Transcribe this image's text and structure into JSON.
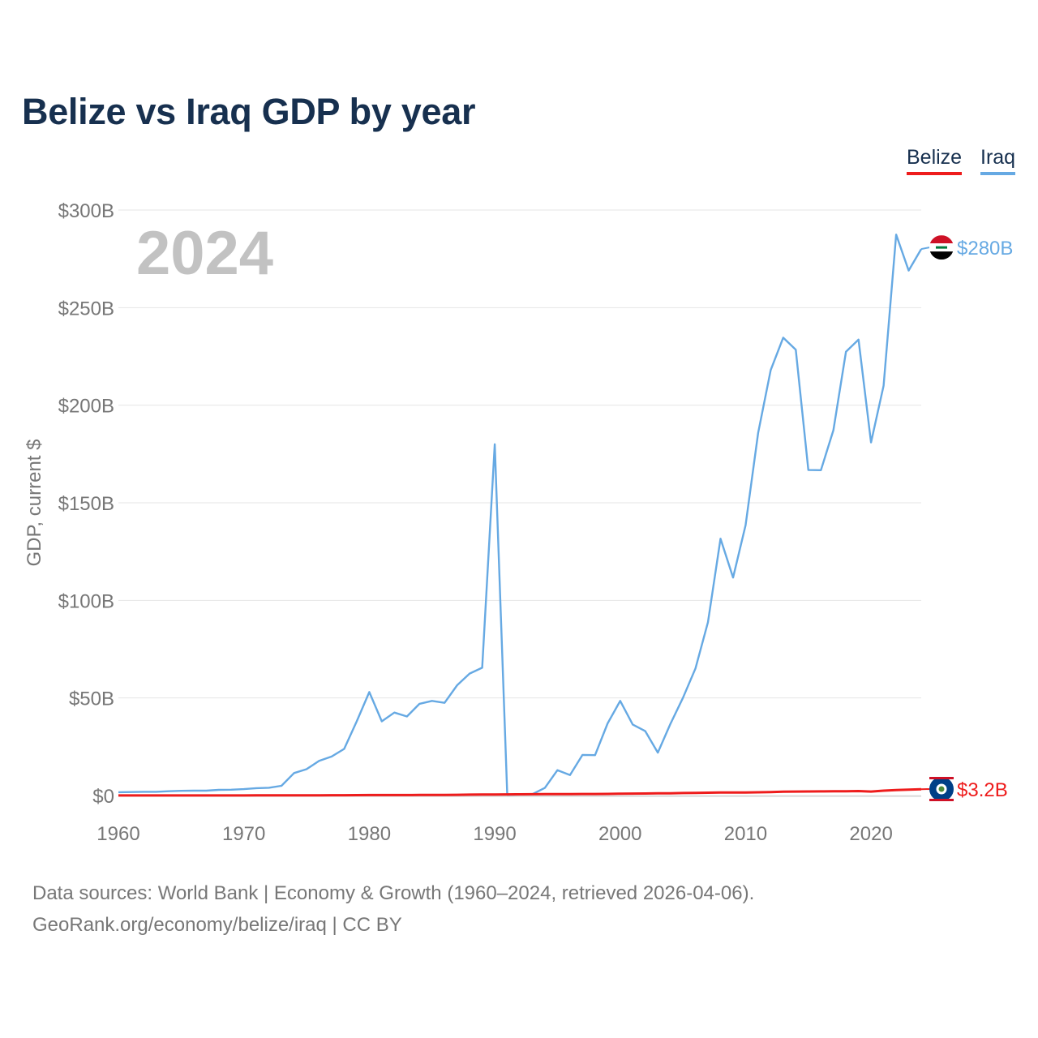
{
  "chart_data": {
    "type": "line",
    "title": "Belize vs Iraq GDP by year",
    "ylabel": "GDP, current $",
    "xlabel": "",
    "year_watermark": "2024",
    "ylim": [
      0,
      300
    ],
    "xlim": [
      1960,
      2024
    ],
    "y_ticks": [
      {
        "value": 0,
        "label": "$0"
      },
      {
        "value": 50,
        "label": "$50B"
      },
      {
        "value": 100,
        "label": "$100B"
      },
      {
        "value": 150,
        "label": "$150B"
      },
      {
        "value": 200,
        "label": "$200B"
      },
      {
        "value": 250,
        "label": "$250B"
      },
      {
        "value": 300,
        "label": "$300B"
      }
    ],
    "x_ticks": [
      {
        "value": 1960,
        "label": "1960"
      },
      {
        "value": 1970,
        "label": "1970"
      },
      {
        "value": 1980,
        "label": "1980"
      },
      {
        "value": 1990,
        "label": "1990"
      },
      {
        "value": 2000,
        "label": "2000"
      },
      {
        "value": 2010,
        "label": "2010"
      },
      {
        "value": 2020,
        "label": "2020"
      }
    ],
    "x": [
      1960,
      1961,
      1962,
      1963,
      1964,
      1965,
      1966,
      1967,
      1968,
      1969,
      1970,
      1971,
      1972,
      1973,
      1974,
      1975,
      1976,
      1977,
      1978,
      1979,
      1980,
      1981,
      1982,
      1983,
      1984,
      1985,
      1986,
      1987,
      1988,
      1989,
      1990,
      1991,
      1992,
      1993,
      1994,
      1995,
      1996,
      1997,
      1998,
      1999,
      2000,
      2001,
      2002,
      2003,
      2004,
      2005,
      2006,
      2007,
      2008,
      2009,
      2010,
      2011,
      2012,
      2013,
      2014,
      2015,
      2016,
      2017,
      2018,
      2019,
      2020,
      2021,
      2022,
      2023,
      2024
    ],
    "series": [
      {
        "name": "Belize",
        "color": "#ee1c1c",
        "end_label": "$3.2B",
        "flag": "belize-flag",
        "values": [
          0.03,
          0.03,
          0.03,
          0.04,
          0.04,
          0.04,
          0.05,
          0.05,
          0.05,
          0.06,
          0.06,
          0.07,
          0.08,
          0.1,
          0.12,
          0.13,
          0.13,
          0.15,
          0.18,
          0.21,
          0.25,
          0.27,
          0.25,
          0.26,
          0.29,
          0.3,
          0.33,
          0.39,
          0.46,
          0.51,
          0.54,
          0.57,
          0.63,
          0.68,
          0.69,
          0.73,
          0.76,
          0.78,
          0.8,
          0.85,
          0.95,
          0.98,
          1.03,
          1.11,
          1.17,
          1.27,
          1.36,
          1.46,
          1.57,
          1.52,
          1.57,
          1.67,
          1.76,
          1.95,
          2.02,
          2.09,
          2.11,
          2.17,
          2.22,
          2.28,
          2.04,
          2.49,
          2.83,
          3.05,
          3.2
        ]
      },
      {
        "name": "Iraq",
        "color": "#66a9e3",
        "end_label": "$280B",
        "flag": "iraq-flag",
        "values": [
          1.7,
          1.8,
          1.9,
          1.9,
          2.2,
          2.4,
          2.5,
          2.5,
          2.9,
          3.0,
          3.3,
          3.8,
          4.0,
          5.0,
          11.5,
          13.5,
          17.8,
          20.0,
          23.9,
          38.0,
          53.0,
          38.0,
          42.5,
          40.5,
          47.0,
          48.5,
          47.5,
          56.5,
          62.5,
          65.5,
          180.0,
          0.4,
          0.5,
          0.7,
          3.9,
          13.0,
          10.5,
          20.8,
          20.7,
          37.0,
          48.5,
          36.4,
          33.0,
          22.0,
          36.6,
          50.0,
          65.1,
          88.8,
          131.6,
          111.7,
          138.5,
          185.8,
          218.0,
          234.6,
          228.4,
          166.8,
          166.7,
          187.2,
          227.4,
          233.6,
          180.9,
          210.0,
          287.4,
          269.0,
          280.0
        ]
      }
    ]
  },
  "legend": {
    "belize": "Belize",
    "iraq": "Iraq"
  },
  "footer": {
    "sources": "Data sources: World Bank | Economy & Growth (1960–2024, retrieved 2026-04-06).",
    "credit": "GeoRank.org/economy/belize/iraq | CC BY"
  }
}
